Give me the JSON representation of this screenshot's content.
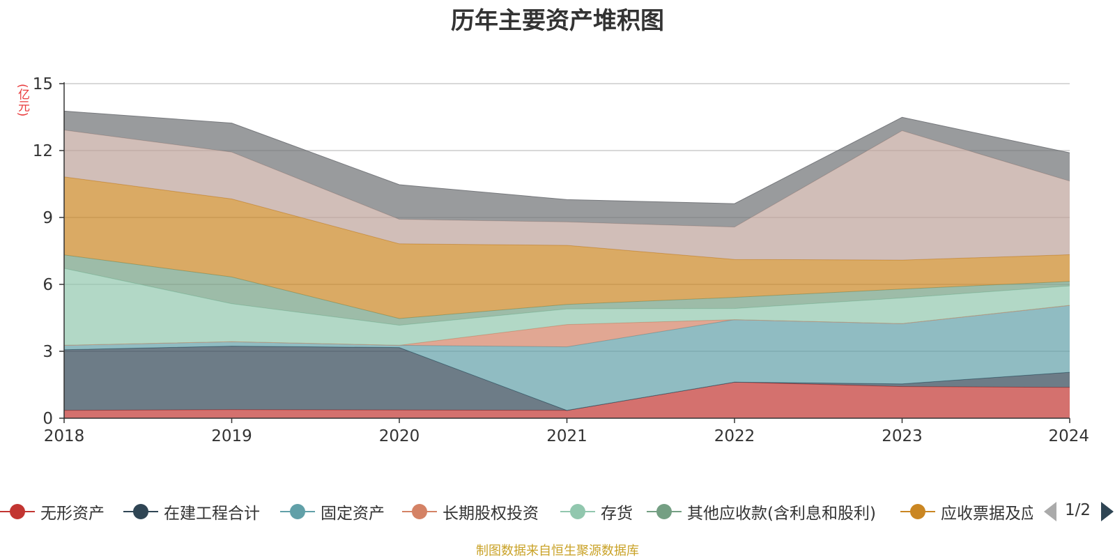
{
  "chart_data": {
    "type": "area",
    "stacked": true,
    "title": "历年主要资产堆积图",
    "y_unit_label": "(亿元)",
    "x": [
      "2018",
      "2019",
      "2020",
      "2021",
      "2022",
      "2023",
      "2024"
    ],
    "ylim": [
      0,
      15
    ],
    "y_ticks": [
      "0",
      "3",
      "6",
      "9",
      "12",
      "15"
    ],
    "grid": true,
    "legend_position": "bottom",
    "series": [
      {
        "name": "无形资产",
        "color": "#c23531",
        "values": [
          0.35,
          0.38,
          0.37,
          0.35,
          1.62,
          1.42,
          1.38
        ]
      },
      {
        "name": "在建工程合计",
        "color": "#2f4554",
        "values": [
          2.72,
          2.85,
          2.8,
          0.0,
          0.0,
          0.12,
          0.68
        ]
      },
      {
        "name": "固定资产",
        "color": "#61a0a8",
        "values": [
          0.2,
          0.2,
          0.1,
          2.85,
          2.8,
          2.7,
          3.0
        ]
      },
      {
        "name": "长期股权投资",
        "color": "#d48265",
        "values": [
          0.0,
          0.0,
          0.0,
          1.0,
          0.0,
          0.0,
          0.0
        ]
      },
      {
        "name": "存货",
        "color": "#91c7ae",
        "values": [
          3.45,
          1.7,
          0.9,
          0.7,
          0.5,
          1.15,
          0.87
        ]
      },
      {
        "name": "其他应收款(含利息和股利)",
        "color": "#749f83",
        "values": [
          0.6,
          1.2,
          0.3,
          0.2,
          0.5,
          0.4,
          0.2
        ]
      },
      {
        "name": "应收票据及应收账款",
        "color": "#ca8622",
        "values": [
          3.5,
          3.5,
          3.35,
          2.65,
          1.7,
          1.3,
          1.2
        ]
      },
      {
        "name": "",
        "color": "#bda29a",
        "values": [
          2.1,
          2.1,
          1.1,
          1.05,
          1.45,
          5.8,
          3.3
        ]
      },
      {
        "name": "",
        "color": "#6e7074",
        "values": [
          0.85,
          1.3,
          1.55,
          1.0,
          1.05,
          0.6,
          1.27
        ]
      }
    ]
  },
  "legend": {
    "items": [
      {
        "label": "无形资产",
        "color": "#c23531"
      },
      {
        "label": "在建工程合计",
        "color": "#2f4554"
      },
      {
        "label": "固定资产",
        "color": "#61a0a8"
      },
      {
        "label": "长期股权投资",
        "color": "#d48265"
      },
      {
        "label": "存货",
        "color": "#91c7ae"
      },
      {
        "label": "其他应收款(含利息和股利)",
        "color": "#749f83"
      },
      {
        "label": "应收票据及应收账款",
        "color": "#ca8622"
      }
    ],
    "page_indicator": "1/2"
  },
  "source_note": "制图数据来自恒生聚源数据库"
}
